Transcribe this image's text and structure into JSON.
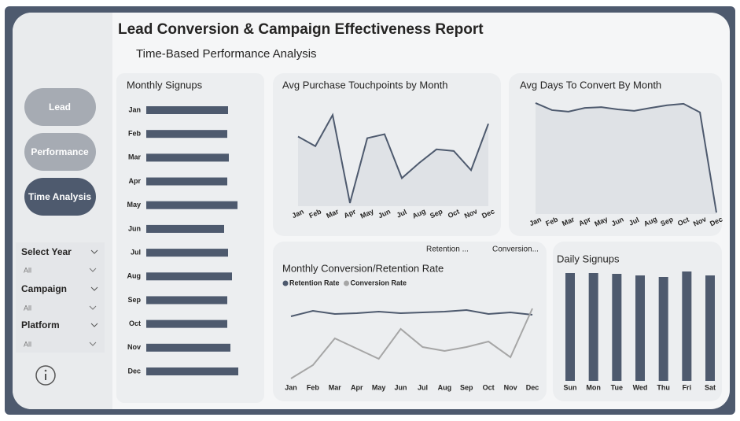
{
  "header": {
    "title": "Lead Conversion & Campaign Effectiveness Report",
    "subtitle": "Time-Based Performance Analysis"
  },
  "nav": [
    "Lead",
    "Performance",
    "Time Analysis"
  ],
  "filters": [
    {
      "label": "Select Year",
      "value": "All"
    },
    {
      "label": "Campaign",
      "value": "All"
    },
    {
      "label": "Platform",
      "value": "All"
    }
  ],
  "cards": [
    "Retention ...",
    "Conversion..."
  ],
  "chart_data": [
    {
      "type": "hbar",
      "title": "Monthly Signups",
      "categories": [
        "Jan",
        "Feb",
        "Mar",
        "Apr",
        "May",
        "Jun",
        "Jul",
        "Aug",
        "Sep",
        "Oct",
        "Nov",
        "Dec"
      ],
      "values": [
        520,
        515,
        525,
        515,
        580,
        495,
        520,
        545,
        515,
        515,
        535,
        585
      ],
      "xlim": [
        0,
        600
      ],
      "color": "#4e5a6e"
    },
    {
      "type": "line",
      "title": "Avg Purchase Touchpoints by Month",
      "area": true,
      "categories": [
        "Jan",
        "Feb",
        "Mar",
        "Apr",
        "May",
        "Jun",
        "Jul",
        "Aug",
        "Sep",
        "Oct",
        "Nov",
        "Dec"
      ],
      "values": [
        4.37,
        4.25,
        4.64,
        3.54,
        4.35,
        4.4,
        3.85,
        4.04,
        4.21,
        4.19,
        3.95,
        4.53
      ],
      "ylim": [
        3.5,
        4.7
      ],
      "color": "#4e5a6e"
    },
    {
      "type": "line",
      "title": "Avg Days To Convert By Month",
      "area": true,
      "categories": [
        "Jan",
        "Feb",
        "Mar",
        "Apr",
        "May",
        "Jun",
        "Jul",
        "Aug",
        "Sep",
        "Oct",
        "Nov",
        "Dec"
      ],
      "values": [
        29.8,
        27.9,
        27.5,
        28.5,
        28.7,
        28.1,
        27.7,
        28.5,
        29.2,
        29.6,
        27.3,
        0.4
      ],
      "ylim": [
        0,
        30
      ],
      "color": "#4e5a6e"
    },
    {
      "type": "line",
      "title": "Monthly Conversion/Retention Rate",
      "area": false,
      "categories": [
        "Jan",
        "Feb",
        "Mar",
        "Apr",
        "May",
        "Jun",
        "Jul",
        "Aug",
        "Sep",
        "Oct",
        "Nov",
        "Dec"
      ],
      "series": [
        {
          "name": "Retention Rate",
          "color": "#4e5a6e",
          "values": [
            83,
            90,
            86,
            87,
            89,
            87,
            88,
            89,
            91,
            86,
            88,
            85
          ]
        },
        {
          "name": "Conversion Rate",
          "color": "#a6a6a6",
          "values": [
            4,
            21,
            55,
            42,
            29,
            67,
            44,
            39,
            44,
            51,
            31,
            93
          ]
        }
      ],
      "ylim": [
        0,
        100
      ]
    },
    {
      "type": "bar",
      "title": "Daily Signups",
      "categories": [
        "Sun",
        "Mon",
        "Tue",
        "Wed",
        "Thu",
        "Fri",
        "Sat"
      ],
      "values": [
        1370,
        1370,
        1360,
        1340,
        1320,
        1390,
        1340
      ],
      "ylim": [
        0,
        1400
      ],
      "color": "#4e5a6e"
    }
  ]
}
